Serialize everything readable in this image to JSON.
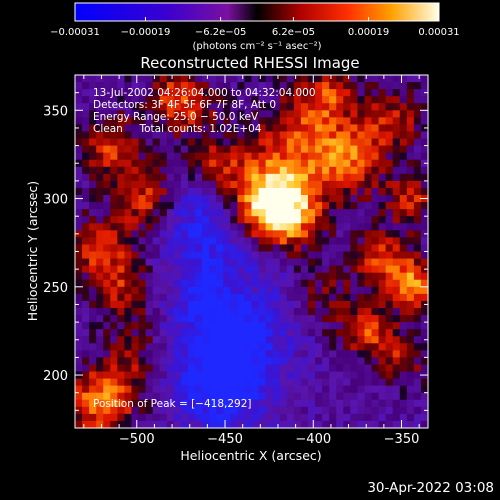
{
  "chart_data": {
    "type": "heatmap",
    "title": "Reconstructed RHESSI Image",
    "xlabel": "Heliocentric X (arcsec)",
    "ylabel": "Heliocentric Y (arcsec)",
    "xlim": [
      -535,
      -335
    ],
    "ylim": [
      170,
      370
    ],
    "x_ticks": [
      -500,
      -450,
      -400,
      -350
    ],
    "y_ticks": [
      200,
      250,
      300,
      350
    ],
    "x_tick_labels": [
      "−500",
      "−450",
      "−400",
      "−350"
    ],
    "y_tick_labels": [
      "200",
      "250",
      "300",
      "350"
    ],
    "colorbar": {
      "range": [
        -0.00031,
        0.00031
      ],
      "ticks": [
        -0.00031,
        -0.00019,
        -6.2e-05,
        6.2e-05,
        0.00019,
        0.00031
      ],
      "tick_labels": [
        "−0.00031",
        "−0.00019",
        "−6.2e−05",
        "6.2e−05",
        "0.00019",
        "0.00031"
      ],
      "unit_label": "(photons cm⁻² s⁻¹ asec⁻²)"
    },
    "annotations": [
      "13-Jul-2002 04:26:04.000 to 04:32:04.000",
      "Detectors: 3F 4F 5F 6F 7F 8F, Att 0",
      "Energy Range: 25.0 − 50.0 keV",
      "Clean     Total counts: 1.02E+04"
    ],
    "peak_label": "Position of Peak = [−418,292]",
    "peak": {
      "x": -418,
      "y": 292
    },
    "grid": false
  },
  "footer_timestamp": "30-Apr-2022 03:08"
}
